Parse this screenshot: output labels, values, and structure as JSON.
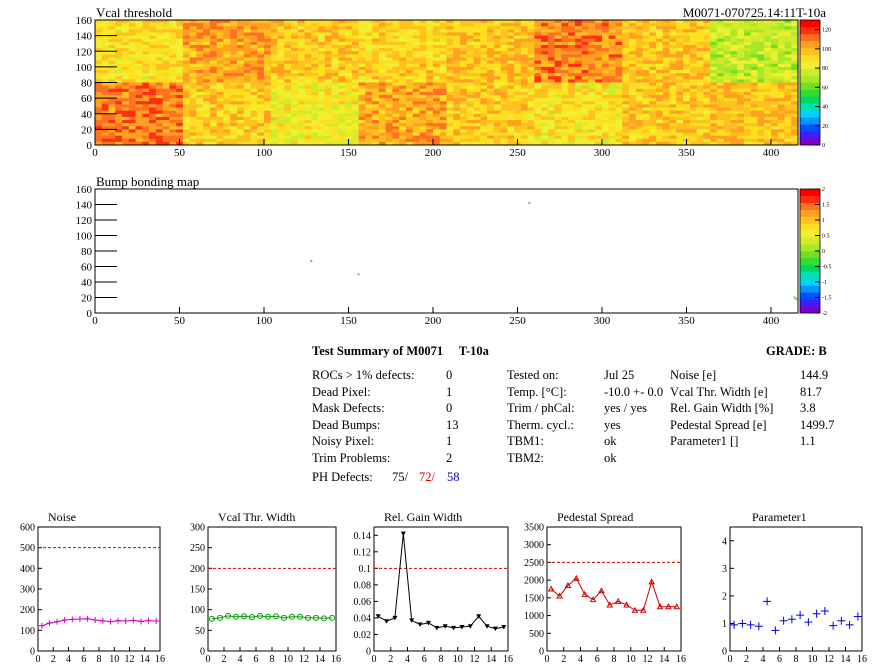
{
  "header": {
    "map1_title": "Vcal threshold",
    "module_id": "M0071-070725.14:11T-10a",
    "map2_title": "Bump bonding map"
  },
  "palette": [
    "#7a00d0",
    "#3c20ff",
    "#0050ff",
    "#0096ff",
    "#00d2ff",
    "#00e0b0",
    "#00d860",
    "#30e030",
    "#70e020",
    "#a8e828",
    "#d0ec28",
    "#f0f030",
    "#ffe020",
    "#ffc020",
    "#ffa020",
    "#ff7020",
    "#ff3010",
    "#ff0000"
  ],
  "vcal_map": {
    "x_ticks": [
      "0",
      "50",
      "100",
      "150",
      "200",
      "250",
      "300",
      "350",
      "400"
    ],
    "y_ticks": [
      "0",
      "20",
      "40",
      "60",
      "80",
      "100",
      "120",
      "140",
      "160"
    ],
    "xlim": [
      0,
      416
    ],
    "ylim": [
      0,
      160
    ],
    "colorbar_ticks": [
      "0",
      "20",
      "40",
      "60",
      "80",
      "100",
      "120"
    ],
    "colorbar_range": [
      0,
      130
    ],
    "roc_levels_top": [
      90,
      103,
      95,
      92,
      97,
      108,
      96,
      74
    ],
    "roc_levels_bottom": [
      110,
      93,
      84,
      102,
      95,
      88,
      95,
      97
    ]
  },
  "bump_map": {
    "x_ticks": [
      "0",
      "50",
      "100",
      "150",
      "200",
      "250",
      "300",
      "350",
      "400"
    ],
    "y_ticks": [
      "0",
      "20",
      "40",
      "60",
      "80",
      "100",
      "120",
      "140",
      "160"
    ],
    "xlim": [
      0,
      416
    ],
    "ylim": [
      0,
      160
    ],
    "colorbar_ticks": [
      "-2",
      "-1.5",
      "-1",
      "-0.5",
      "0",
      "0.5",
      "1",
      "1.5",
      "2"
    ],
    "colorbar_range": [
      -2,
      2
    ],
    "points": [
      [
        257,
        142
      ],
      [
        128,
        67
      ],
      [
        156,
        50
      ],
      [
        414,
        20
      ],
      [
        415,
        18
      ]
    ]
  },
  "summary": {
    "title": "Test Summary of M0071",
    "tag": "T-10a",
    "grade": "GRADE:  B",
    "col1": [
      {
        "label": "ROCs > 1% defects:",
        "value": "0"
      },
      {
        "label": "Dead Pixel:",
        "value": "1"
      },
      {
        "label": "Mask Defects:",
        "value": "0"
      },
      {
        "label": "Dead Bumps:",
        "value": "13"
      },
      {
        "label": "Noisy Pixel:",
        "value": "1"
      },
      {
        "label": "Trim Problems:",
        "value": "2"
      }
    ],
    "ph_label": "PH Defects:",
    "ph_values": [
      "75/",
      "72/",
      "58"
    ],
    "ph_colors": [
      "#000000",
      "#d00000",
      "#0000c0"
    ],
    "col2": [
      {
        "label": "Tested on:",
        "value": "Jul 25"
      },
      {
        "label": "Temp. [°C]:",
        "value": "-10.0 +- 0.0"
      },
      {
        "label": "Trim / phCal:",
        "value": "yes / yes"
      },
      {
        "label": "Therm. cycl.:",
        "value": "yes"
      },
      {
        "label": "TBM1:",
        "value": "ok"
      },
      {
        "label": "TBM2:",
        "value": "ok"
      }
    ],
    "col3": [
      {
        "label": "Noise [e]",
        "value": "144.9"
      },
      {
        "label": "Vcal Thr. Width [e]",
        "value": "81.7"
      },
      {
        "label": "Rel. Gain Width [%]",
        "value": "3.8"
      },
      {
        "label": "Pedestal Spread [e]",
        "value": "1499.7"
      },
      {
        "label": "Parameter1 []",
        "value": "1.1"
      }
    ]
  },
  "chart_data": [
    {
      "type": "line",
      "title": "Noise",
      "x": [
        0,
        1,
        2,
        3,
        4,
        5,
        6,
        7,
        8,
        9,
        10,
        11,
        12,
        13,
        14,
        15
      ],
      "values": [
        122,
        135,
        142,
        150,
        153,
        155,
        156,
        150,
        146,
        142,
        147,
        145,
        148,
        143,
        147,
        145
      ],
      "ylim": [
        0,
        600
      ],
      "xlim": [
        0,
        16
      ],
      "threshold": 500,
      "color": "#d000d0",
      "marker": "plus",
      "x_ticks": [
        "0",
        "2",
        "4",
        "6",
        "8",
        "10",
        "12",
        "14",
        "16"
      ],
      "y_ticks": [
        "0",
        "100",
        "200",
        "300",
        "400",
        "500",
        "600"
      ]
    },
    {
      "type": "line",
      "title": "Vcal Thr. Width",
      "x": [
        0,
        1,
        2,
        3,
        4,
        5,
        6,
        7,
        8,
        9,
        10,
        11,
        12,
        13,
        14,
        15
      ],
      "values": [
        78,
        80,
        85,
        83,
        84,
        82,
        85,
        83,
        84,
        80,
        83,
        83,
        80,
        80,
        79,
        80
      ],
      "ylim": [
        0,
        300
      ],
      "xlim": [
        0,
        16
      ],
      "threshold": 200,
      "color": "#00a000",
      "marker": "circle",
      "x_ticks": [
        "0",
        "2",
        "4",
        "6",
        "8",
        "10",
        "12",
        "14",
        "16"
      ],
      "y_ticks": [
        "0",
        "50",
        "100",
        "150",
        "200",
        "250",
        "300"
      ]
    },
    {
      "type": "line",
      "title": "Rel. Gain Width",
      "x": [
        0,
        1,
        2,
        3,
        4,
        5,
        6,
        7,
        8,
        9,
        10,
        11,
        12,
        13,
        14,
        15
      ],
      "values": [
        0.042,
        0.036,
        0.04,
        0.142,
        0.037,
        0.032,
        0.034,
        0.028,
        0.03,
        0.028,
        0.029,
        0.03,
        0.042,
        0.03,
        0.027,
        0.029
      ],
      "ylim": [
        0,
        0.15
      ],
      "xlim": [
        0,
        16
      ],
      "threshold": 0.1,
      "color": "#000000",
      "marker": "triangle",
      "x_ticks": [
        "0",
        "2",
        "4",
        "6",
        "8",
        "10",
        "12",
        "14",
        "16"
      ],
      "y_ticks": [
        "0",
        "0.02",
        "0.04",
        "0.06",
        "0.08",
        "0.1",
        "0.12",
        "0.14"
      ]
    },
    {
      "type": "line",
      "title": "Pedestal Spread",
      "x": [
        0,
        1,
        2,
        3,
        4,
        5,
        6,
        7,
        8,
        9,
        10,
        11,
        12,
        13,
        14,
        15
      ],
      "values": [
        1750,
        1550,
        1850,
        2050,
        1600,
        1450,
        1700,
        1300,
        1400,
        1300,
        1150,
        1150,
        1950,
        1250,
        1250,
        1250
      ],
      "ylim": [
        0,
        3500
      ],
      "xlim": [
        0,
        16
      ],
      "threshold": 2500,
      "color": "#d00000",
      "marker": "triangle-up",
      "x_ticks": [
        "0",
        "2",
        "4",
        "6",
        "8",
        "10",
        "12",
        "14",
        "16"
      ],
      "y_ticks": [
        "0",
        "500",
        "1000",
        "1500",
        "2000",
        "2500",
        "3000",
        "3500"
      ]
    },
    {
      "type": "scatter",
      "title": "Parameter1",
      "x": [
        0,
        1,
        2,
        3,
        4,
        5,
        6,
        7,
        8,
        9,
        10,
        11,
        12,
        13,
        14,
        15
      ],
      "values": [
        0.95,
        1.0,
        0.95,
        0.9,
        1.8,
        0.75,
        1.1,
        1.15,
        1.3,
        1.05,
        1.35,
        1.45,
        0.92,
        1.1,
        0.95,
        1.25
      ],
      "ylim": [
        0,
        4.5
      ],
      "xlim": [
        0,
        16
      ],
      "color": "#0000e0",
      "marker": "plus",
      "x_ticks": [
        "0",
        "2",
        "4",
        "6",
        "8",
        "10",
        "12",
        "14",
        "16"
      ],
      "y_ticks": [
        "0",
        "1",
        "2",
        "3",
        "4"
      ]
    }
  ]
}
